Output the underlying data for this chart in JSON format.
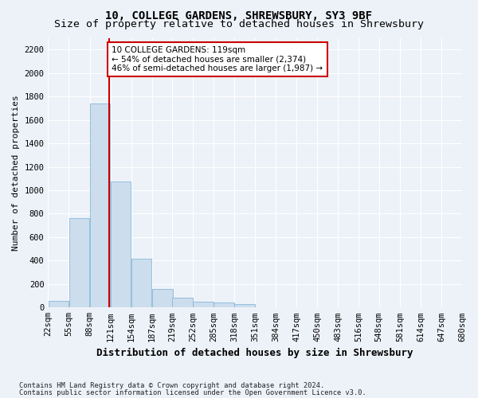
{
  "title": "10, COLLEGE GARDENS, SHREWSBURY, SY3 9BF",
  "subtitle": "Size of property relative to detached houses in Shrewsbury",
  "xlabel": "Distribution of detached houses by size in Shrewsbury",
  "ylabel": "Number of detached properties",
  "footnote1": "Contains HM Land Registry data © Crown copyright and database right 2024.",
  "footnote2": "Contains public sector information licensed under the Open Government Licence v3.0.",
  "bar_bins": [
    22,
    55,
    88,
    121,
    154,
    187,
    219,
    252,
    285,
    318,
    351,
    384,
    417,
    450,
    483,
    516,
    548,
    581,
    614,
    647,
    680
  ],
  "bar_heights": [
    55,
    760,
    1740,
    1075,
    415,
    160,
    80,
    47,
    40,
    30,
    0,
    0,
    0,
    0,
    0,
    0,
    0,
    0,
    0,
    0
  ],
  "bar_color": "#ccdded",
  "bar_edge_color": "#88b8d8",
  "vline_x": 119,
  "vline_color": "#cc0000",
  "annotation_text": "10 COLLEGE GARDENS: 119sqm\n← 54% of detached houses are smaller (2,374)\n46% of semi-detached houses are larger (1,987) →",
  "annotation_box_color": "#ffffff",
  "annotation_box_edge_color": "#cc0000",
  "ylim": [
    0,
    2300
  ],
  "bg_color": "#edf2f9",
  "plot_bg_color": "#edf2f9",
  "grid_color": "#ffffff",
  "title_fontsize": 10,
  "subtitle_fontsize": 9.5,
  "tick_label_fontsize": 7.5,
  "ylabel_fontsize": 8,
  "xlabel_fontsize": 9
}
